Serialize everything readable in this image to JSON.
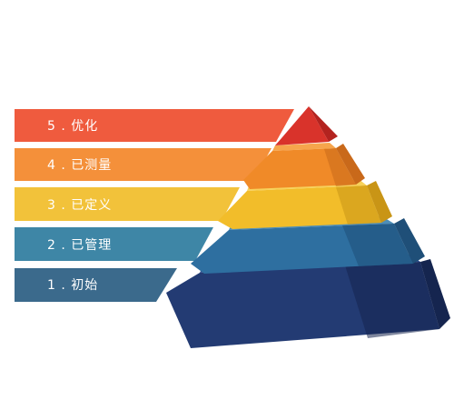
{
  "levels": [
    {
      "label": "5 . 优化",
      "color": "#EF5B3E",
      "shade": "#C8432B"
    },
    {
      "label": "4 . 已测量",
      "color": "#F4903A",
      "shade": "#D06F22"
    },
    {
      "label": "3 . 已定义",
      "color": "#F2C23A",
      "shade": "#D09A18"
    },
    {
      "label": "2 . 已管理",
      "color": "#3E86A6",
      "shade": "#2B6682"
    },
    {
      "label": "1 . 初始",
      "color": "#3B6A8C",
      "shade": "#2A4E6B"
    }
  ],
  "pyramid_colors": {
    "top": "#D9332B",
    "top_side": "#B3231F",
    "layer4": "#F08A28",
    "layer4_side": "#C9691A",
    "layer4_top": "#F6A54C",
    "layer3": "#F2BD2A",
    "layer3_side": "#C99516",
    "layer3_top": "#F7D15A",
    "layer2": "#2E6FA0",
    "layer2_side": "#1F4F78",
    "layer2_top": "#4D8EB8",
    "layer1": "#233B73",
    "layer1_side": "#15254F",
    "layer1_top": "#2F4C8C"
  }
}
